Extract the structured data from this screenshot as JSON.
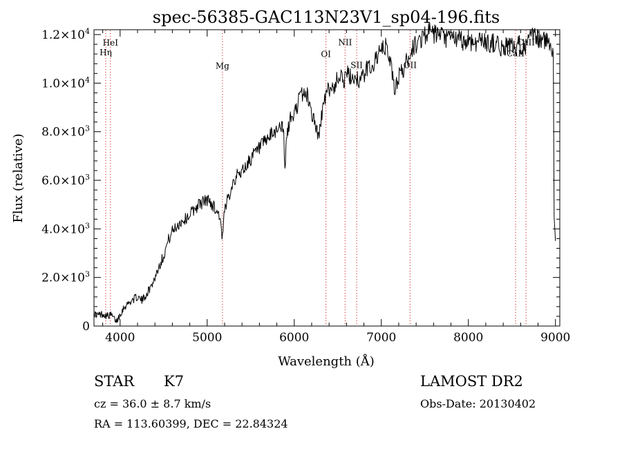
{
  "chart_data": {
    "type": "line",
    "title": "spec-56385-GAC113N23V1_sp04-196.fits",
    "xlabel": "Wavelength (Å)",
    "ylabel": "Flux (relative)",
    "xlim": [
      3700,
      9050
    ],
    "ylim": [
      0,
      12200
    ],
    "xticks": [
      4000,
      5000,
      6000,
      7000,
      8000,
      9000
    ],
    "yticks": [
      {
        "value": 0,
        "mant": "0",
        "exp": ""
      },
      {
        "value": 2000,
        "mant": "2.0×10",
        "exp": "3"
      },
      {
        "value": 4000,
        "mant": "4.0×10",
        "exp": "3"
      },
      {
        "value": 6000,
        "mant": "6.0×10",
        "exp": "3"
      },
      {
        "value": 8000,
        "mant": "8.0×10",
        "exp": "3"
      },
      {
        "value": 10000,
        "mant": "1.0×10",
        "exp": "4"
      },
      {
        "value": 12000,
        "mant": "1.2×10",
        "exp": "4"
      }
    ],
    "line_color": "#000000",
    "marker_color": "#cc0000",
    "lines": [
      {
        "label": "HeI",
        "x": 3889,
        "label_flux": 11550
      },
      {
        "label": "Hη",
        "x": 3835,
        "label_flux": 11150
      },
      {
        "label": "Mg",
        "x": 5175,
        "label_flux": 10600
      },
      {
        "label": "OI",
        "x": 6364,
        "label_flux": 11080
      },
      {
        "label": "NII",
        "x": 6584,
        "label_flux": 11560
      },
      {
        "label": "SII",
        "x": 6717,
        "label_flux": 10620
      },
      {
        "label": "OII",
        "x": 7330,
        "label_flux": 10620
      },
      {
        "label": "CaII",
        "x": 8542,
        "label_flux": 11100
      },
      {
        "label": "CaII",
        "x": 8662,
        "label_flux": 11560
      }
    ],
    "series": [
      {
        "points": [
          [
            3700,
            500
          ],
          [
            3750,
            450
          ],
          [
            3800,
            500
          ],
          [
            3850,
            420
          ],
          [
            3900,
            450
          ],
          [
            3930,
            300
          ],
          [
            3960,
            200
          ],
          [
            4000,
            500
          ],
          [
            4050,
            800
          ],
          [
            4100,
            950
          ],
          [
            4150,
            1100
          ],
          [
            4200,
            1200
          ],
          [
            4250,
            1050
          ],
          [
            4300,
            1300
          ],
          [
            4350,
            1600
          ],
          [
            4400,
            2000
          ],
          [
            4450,
            2500
          ],
          [
            4500,
            2900
          ],
          [
            4550,
            3500
          ],
          [
            4600,
            3900
          ],
          [
            4650,
            4100
          ],
          [
            4700,
            4300
          ],
          [
            4750,
            4400
          ],
          [
            4800,
            4600
          ],
          [
            4850,
            4800
          ],
          [
            4900,
            5000
          ],
          [
            4950,
            5100
          ],
          [
            5000,
            5200
          ],
          [
            5050,
            5050
          ],
          [
            5100,
            4800
          ],
          [
            5150,
            4500
          ],
          [
            5170,
            3500
          ],
          [
            5200,
            4700
          ],
          [
            5250,
            5400
          ],
          [
            5300,
            6000
          ],
          [
            5350,
            6200
          ],
          [
            5400,
            6400
          ],
          [
            5450,
            6600
          ],
          [
            5500,
            6900
          ],
          [
            5550,
            7100
          ],
          [
            5600,
            7300
          ],
          [
            5650,
            7500
          ],
          [
            5700,
            7700
          ],
          [
            5750,
            7900
          ],
          [
            5800,
            8100
          ],
          [
            5850,
            8300
          ],
          [
            5880,
            7800
          ],
          [
            5893,
            6300
          ],
          [
            5910,
            7700
          ],
          [
            5950,
            8500
          ],
          [
            6000,
            8700
          ],
          [
            6050,
            9300
          ],
          [
            6100,
            9600
          ],
          [
            6150,
            9500
          ],
          [
            6200,
            8800
          ],
          [
            6250,
            8200
          ],
          [
            6280,
            7700
          ],
          [
            6300,
            8400
          ],
          [
            6350,
            9300
          ],
          [
            6400,
            9800
          ],
          [
            6450,
            9800
          ],
          [
            6500,
            10200
          ],
          [
            6550,
            10600
          ],
          [
            6563,
            9900
          ],
          [
            6600,
            10400
          ],
          [
            6650,
            10200
          ],
          [
            6700,
            10300
          ],
          [
            6750,
            10100
          ],
          [
            6800,
            10300
          ],
          [
            6850,
            10700
          ],
          [
            6900,
            10700
          ],
          [
            6950,
            11100
          ],
          [
            7000,
            11300
          ],
          [
            7050,
            11500
          ],
          [
            7100,
            11000
          ],
          [
            7150,
            9700
          ],
          [
            7200,
            10300
          ],
          [
            7250,
            10500
          ],
          [
            7300,
            11000
          ],
          [
            7350,
            11400
          ],
          [
            7400,
            11600
          ],
          [
            7450,
            11800
          ],
          [
            7500,
            12000
          ],
          [
            7550,
            12100
          ],
          [
            7600,
            12000
          ],
          [
            7650,
            12000
          ],
          [
            7700,
            11900
          ],
          [
            7750,
            11800
          ],
          [
            7800,
            11900
          ],
          [
            7850,
            11800
          ],
          [
            7900,
            11800
          ],
          [
            7950,
            11700
          ],
          [
            8000,
            11700
          ],
          [
            8050,
            11700
          ],
          [
            8100,
            11700
          ],
          [
            8150,
            11800
          ],
          [
            8200,
            11700
          ],
          [
            8250,
            11600
          ],
          [
            8300,
            11700
          ],
          [
            8350,
            11500
          ],
          [
            8400,
            11400
          ],
          [
            8450,
            11600
          ],
          [
            8500,
            11500
          ],
          [
            8542,
            11300
          ],
          [
            8580,
            11600
          ],
          [
            8662,
            11500
          ],
          [
            8700,
            11800
          ],
          [
            8750,
            11900
          ],
          [
            8800,
            11800
          ],
          [
            8850,
            11800
          ],
          [
            8900,
            11700
          ],
          [
            8950,
            11700
          ],
          [
            8975,
            11200
          ],
          [
            8985,
            4500
          ],
          [
            9000,
            3500
          ]
        ]
      }
    ]
  },
  "info": {
    "class_label": "STAR",
    "subclass": "K7",
    "cz": "cz = 36.0 ± 8.7 km/s",
    "radec": "RA = 113.60399, DEC =  22.84324",
    "survey": "LAMOST DR2",
    "obs_date": "Obs-Date: 20130402"
  }
}
